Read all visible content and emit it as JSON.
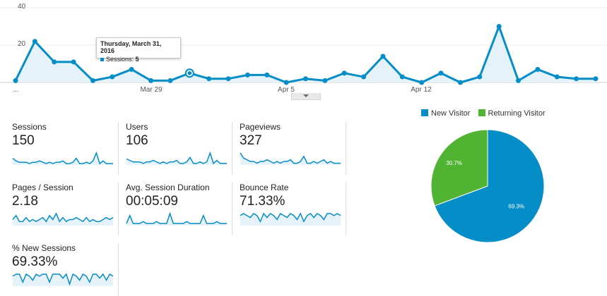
{
  "colors": {
    "sessions_line": "#058dc7",
    "area_fill": "#e6f2f9",
    "new_visitor": "#058dc7",
    "returning_visitor": "#50b432"
  },
  "chart_data": [
    {
      "type": "area",
      "series": [
        {
          "name": "Sessions",
          "values": [
            1,
            22,
            11,
            11,
            1,
            3,
            7,
            1,
            1,
            5,
            2,
            2,
            4,
            4,
            0,
            2,
            1,
            5,
            3,
            14,
            3,
            0,
            5,
            0,
            3,
            30,
            1,
            7,
            3,
            2,
            2
          ]
        }
      ],
      "categories_note_visible": [
        "Mar 29",
        "Apr 5",
        "Apr 12"
      ],
      "ylim": [
        0,
        40
      ],
      "y_ticks": [
        "40",
        "20"
      ],
      "x_tick_labels": [
        "...",
        "Mar 29",
        "Apr 5",
        "Apr 12"
      ],
      "highlight_index": 9,
      "grid": true
    },
    {
      "type": "pie",
      "categories": [
        "New Visitor",
        "Returning Visitor"
      ],
      "values": [
        69.3,
        30.7
      ],
      "labels": [
        "69.3%",
        "30.7%"
      ],
      "legend": "top"
    }
  ],
  "tooltip": {
    "date": "Thursday, March 31, 2016",
    "metric_label": "Sessions:",
    "metric_value": "5"
  },
  "metrics": [
    {
      "label": "Sessions",
      "value": "150",
      "spark": [
        5,
        3,
        2,
        2,
        2,
        1,
        2,
        2,
        3,
        2,
        1,
        2,
        1,
        2,
        2,
        3,
        1,
        1,
        2,
        5,
        1,
        1,
        2,
        1,
        3,
        9,
        1,
        3,
        1,
        1,
        1
      ]
    },
    {
      "label": "Users",
      "value": "106",
      "spark": [
        4,
        3,
        2,
        2,
        2,
        1,
        2,
        2,
        3,
        2,
        1,
        2,
        1,
        2,
        2,
        3,
        1,
        1,
        2,
        5,
        1,
        1,
        2,
        1,
        2,
        8,
        1,
        3,
        1,
        1,
        1
      ]
    },
    {
      "label": "Pageviews",
      "value": "327",
      "spark": [
        7,
        4,
        3,
        2,
        2,
        1,
        2,
        2,
        3,
        2,
        1,
        2,
        1,
        2,
        2,
        3,
        1,
        1,
        2,
        5,
        1,
        1,
        2,
        1,
        2,
        3,
        1,
        2,
        1,
        1,
        1
      ]
    },
    {
      "label": "Pages / Session",
      "value": "2.18",
      "spark": [
        3,
        5,
        2,
        2,
        4,
        2,
        3,
        2,
        3,
        4,
        2,
        5,
        3,
        6,
        2,
        4,
        2,
        3,
        3,
        4,
        3,
        2,
        4,
        2,
        3,
        2,
        2,
        3,
        4,
        3,
        4
      ]
    },
    {
      "label": "Avg. Session Duration",
      "value": "00:05:09",
      "spark": [
        1,
        5,
        1,
        1,
        1,
        2,
        1,
        1,
        1,
        2,
        1,
        1,
        1,
        6,
        1,
        1,
        1,
        1,
        2,
        1,
        1,
        1,
        1,
        5,
        1,
        1,
        1,
        2,
        1,
        1,
        1
      ]
    },
    {
      "label": "Bounce Rate",
      "value": "71.33%",
      "spark": [
        5,
        6,
        5,
        4,
        6,
        5,
        2,
        6,
        4,
        6,
        5,
        3,
        6,
        5,
        4,
        6,
        5,
        3,
        6,
        2,
        5,
        6,
        4,
        6,
        5,
        3,
        6,
        6,
        5,
        6,
        5
      ]
    },
    {
      "label": "% New Sessions",
      "value": "69.33%",
      "spark": [
        5,
        6,
        6,
        2,
        6,
        5,
        3,
        6,
        5,
        6,
        6,
        2,
        6,
        6,
        6,
        4,
        6,
        1,
        6,
        5,
        3,
        6,
        5,
        2,
        6,
        6,
        4,
        6,
        3,
        6,
        5
      ]
    }
  ],
  "pie_legend": [
    "New Visitor",
    "Returning Visitor"
  ]
}
